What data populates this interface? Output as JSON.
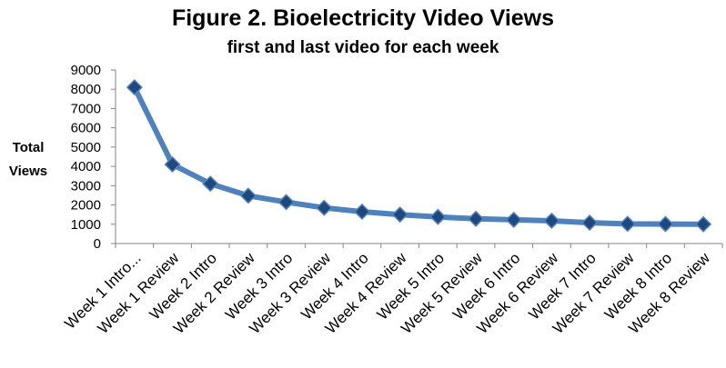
{
  "chart_data": {
    "type": "line",
    "title": "Figure 2. Bioelectricity Video Views",
    "subtitle": "first and last video for each week",
    "ylabel": [
      "Total",
      "Views"
    ],
    "xlabel": "",
    "ylim": [
      0,
      9000
    ],
    "yticks": [
      0,
      1000,
      2000,
      3000,
      4000,
      5000,
      6000,
      7000,
      8000,
      9000
    ],
    "grid": false,
    "legend": "none",
    "categories": [
      "Week 1 Intro...",
      "Week 1 Review",
      "Week 2 Intro",
      "Week 2 Review",
      "Week 3 Intro",
      "Week 3 Review",
      "Week 4 Intro",
      "Week 4 Review",
      "Week 5 Intro",
      "Week 5 Review",
      "Week 6 Intro",
      "Week 6 Review",
      "Week 7 Intro",
      "Week 7 Review",
      "Week 8 Intro",
      "Week 8 Review"
    ],
    "series": [
      {
        "values": [
          8100,
          4100,
          3100,
          2480,
          2150,
          1850,
          1650,
          1500,
          1380,
          1280,
          1230,
          1180,
          1080,
          1020,
          1010,
          1000
        ],
        "color": "#4f81bd",
        "marker_color": "#1f497d"
      }
    ]
  }
}
